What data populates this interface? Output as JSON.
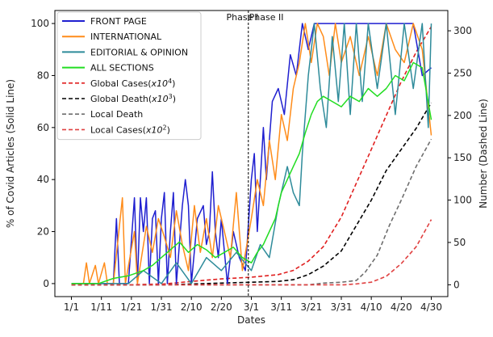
{
  "chart_data": {
    "type": "line",
    "xlabel": "Dates",
    "ylabel_left": "% of Covid Articles (Solid Line)",
    "ylabel_right": "Number (Dashed Line)",
    "x_ticks": [
      "1/1",
      "1/11",
      "1/21",
      "1/31",
      "2/10",
      "2/20",
      "3/1",
      "3/11",
      "3/21",
      "3/31",
      "4/10",
      "4/20",
      "4/30"
    ],
    "x_range": [
      "1/1",
      "4/30"
    ],
    "ylim_left": [
      0,
      100
    ],
    "ylim_right": [
      0,
      310
    ],
    "y_ticks_left": [
      0,
      20,
      40,
      60,
      80,
      100
    ],
    "y_ticks_right": [
      0,
      50,
      100,
      150,
      200,
      250,
      300
    ],
    "grid": false,
    "legend_position": "top-left",
    "annotations": [
      {
        "label": "Phase I",
        "x": "2/27"
      },
      {
        "label": "Phase II",
        "x": "3/6"
      }
    ],
    "phase_divider_x": "2/29",
    "solid_series": [
      {
        "name": "FRONT PAGE",
        "color": "#1f1fd0",
        "points": [
          [
            "1/1",
            0
          ],
          [
            "1/10",
            0
          ],
          [
            "1/15",
            0
          ],
          [
            "1/16",
            25
          ],
          [
            "1/17",
            0
          ],
          [
            "1/20",
            0
          ],
          [
            "1/22",
            33
          ],
          [
            "1/23",
            0
          ],
          [
            "1/24",
            33
          ],
          [
            "1/25",
            20
          ],
          [
            "1/26",
            33
          ],
          [
            "1/27",
            0
          ],
          [
            "1/28",
            25
          ],
          [
            "1/29",
            28
          ],
          [
            "1/30",
            0
          ],
          [
            "1/31",
            25
          ],
          [
            "2/1",
            35
          ],
          [
            "2/2",
            0
          ],
          [
            "2/3",
            20
          ],
          [
            "2/4",
            35
          ],
          [
            "2/5",
            0
          ],
          [
            "2/6",
            15
          ],
          [
            "2/7",
            30
          ],
          [
            "2/8",
            40
          ],
          [
            "2/9",
            30
          ],
          [
            "2/10",
            0
          ],
          [
            "2/12",
            25
          ],
          [
            "2/14",
            30
          ],
          [
            "2/15",
            15
          ],
          [
            "2/16",
            20
          ],
          [
            "2/17",
            43
          ],
          [
            "2/18",
            20
          ],
          [
            "2/19",
            10
          ],
          [
            "2/20",
            25
          ],
          [
            "2/22",
            0
          ],
          [
            "2/24",
            20
          ],
          [
            "2/26",
            10
          ],
          [
            "2/28",
            5
          ],
          [
            "3/1",
            40
          ],
          [
            "3/2",
            50
          ],
          [
            "3/3",
            20
          ],
          [
            "3/5",
            60
          ],
          [
            "3/6",
            40
          ],
          [
            "3/8",
            70
          ],
          [
            "3/10",
            75
          ],
          [
            "3/12",
            65
          ],
          [
            "3/14",
            88
          ],
          [
            "3/16",
            80
          ],
          [
            "3/18",
            100
          ],
          [
            "3/20",
            90
          ],
          [
            "3/22",
            100
          ],
          [
            "3/25",
            100
          ],
          [
            "3/28",
            100
          ],
          [
            "3/31",
            100
          ],
          [
            "4/3",
            100
          ],
          [
            "4/6",
            100
          ],
          [
            "4/9",
            100
          ],
          [
            "4/12",
            100
          ],
          [
            "4/15",
            100
          ],
          [
            "4/18",
            100
          ],
          [
            "4/21",
            100
          ],
          [
            "4/24",
            100
          ],
          [
            "4/27",
            80
          ],
          [
            "4/30",
            83
          ]
        ]
      },
      {
        "name": "INTERNATIONAL",
        "color": "#ff8c1a",
        "points": [
          [
            "1/1",
            0
          ],
          [
            "1/5",
            0
          ],
          [
            "1/6",
            8
          ],
          [
            "1/7",
            0
          ],
          [
            "1/9",
            7
          ],
          [
            "1/10",
            0
          ],
          [
            "1/12",
            8
          ],
          [
            "1/13",
            0
          ],
          [
            "1/15",
            0
          ],
          [
            "1/18",
            33
          ],
          [
            "1/19",
            0
          ],
          [
            "1/22",
            20
          ],
          [
            "1/23",
            0
          ],
          [
            "1/26",
            22
          ],
          [
            "1/28",
            12
          ],
          [
            "1/30",
            25
          ],
          [
            "2/1",
            18
          ],
          [
            "2/3",
            10
          ],
          [
            "2/5",
            28
          ],
          [
            "2/7",
            15
          ],
          [
            "2/9",
            5
          ],
          [
            "2/11",
            30
          ],
          [
            "2/13",
            12
          ],
          [
            "2/15",
            25
          ],
          [
            "2/17",
            10
          ],
          [
            "2/19",
            30
          ],
          [
            "2/21",
            20
          ],
          [
            "2/23",
            10
          ],
          [
            "2/25",
            35
          ],
          [
            "2/27",
            5
          ],
          [
            "3/1",
            25
          ],
          [
            "3/3",
            40
          ],
          [
            "3/5",
            30
          ],
          [
            "3/7",
            55
          ],
          [
            "3/9",
            40
          ],
          [
            "3/11",
            65
          ],
          [
            "3/13",
            55
          ],
          [
            "3/15",
            75
          ],
          [
            "3/17",
            85
          ],
          [
            "3/19",
            100
          ],
          [
            "3/21",
            85
          ],
          [
            "3/23",
            100
          ],
          [
            "3/25",
            95
          ],
          [
            "3/27",
            80
          ],
          [
            "3/29",
            100
          ],
          [
            "3/31",
            85
          ],
          [
            "4/3",
            95
          ],
          [
            "4/6",
            80
          ],
          [
            "4/9",
            95
          ],
          [
            "4/12",
            80
          ],
          [
            "4/15",
            100
          ],
          [
            "4/18",
            90
          ],
          [
            "4/21",
            85
          ],
          [
            "4/24",
            100
          ],
          [
            "4/27",
            90
          ],
          [
            "4/30",
            57
          ]
        ]
      },
      {
        "name": "EDITORIAL & OPINION",
        "color": "#2e8b9a",
        "points": [
          [
            "1/1",
            0
          ],
          [
            "1/15",
            0
          ],
          [
            "1/20",
            0
          ],
          [
            "1/25",
            5
          ],
          [
            "1/31",
            0
          ],
          [
            "2/5",
            8
          ],
          [
            "2/10",
            0
          ],
          [
            "2/15",
            10
          ],
          [
            "2/20",
            5
          ],
          [
            "2/25",
            12
          ],
          [
            "3/1",
            5
          ],
          [
            "3/4",
            15
          ],
          [
            "3/7",
            10
          ],
          [
            "3/10",
            30
          ],
          [
            "3/13",
            45
          ],
          [
            "3/15",
            35
          ],
          [
            "3/17",
            30
          ],
          [
            "3/18",
            50
          ],
          [
            "3/20",
            80
          ],
          [
            "3/22",
            100
          ],
          [
            "3/24",
            75
          ],
          [
            "3/26",
            60
          ],
          [
            "3/28",
            95
          ],
          [
            "3/30",
            70
          ],
          [
            "4/1",
            100
          ],
          [
            "4/3",
            65
          ],
          [
            "4/5",
            100
          ],
          [
            "4/7",
            70
          ],
          [
            "4/9",
            100
          ],
          [
            "4/12",
            75
          ],
          [
            "4/15",
            100
          ],
          [
            "4/18",
            65
          ],
          [
            "4/21",
            100
          ],
          [
            "4/24",
            75
          ],
          [
            "4/27",
            100
          ],
          [
            "4/29",
            60
          ],
          [
            "4/30",
            100
          ]
        ]
      },
      {
        "name": "ALL SECTIONS",
        "color": "#22dd22",
        "points": [
          [
            "1/1",
            0
          ],
          [
            "1/10",
            0
          ],
          [
            "1/15",
            2
          ],
          [
            "1/20",
            3
          ],
          [
            "1/25",
            5
          ],
          [
            "1/28",
            7
          ],
          [
            "1/31",
            10
          ],
          [
            "2/3",
            13
          ],
          [
            "2/6",
            16
          ],
          [
            "2/9",
            12
          ],
          [
            "2/12",
            15
          ],
          [
            "2/15",
            13
          ],
          [
            "2/18",
            10
          ],
          [
            "2/21",
            12
          ],
          [
            "2/24",
            14
          ],
          [
            "2/27",
            10
          ],
          [
            "3/1",
            8
          ],
          [
            "3/3",
            12
          ],
          [
            "3/5",
            15
          ],
          [
            "3/7",
            20
          ],
          [
            "3/9",
            25
          ],
          [
            "3/11",
            35
          ],
          [
            "3/13",
            40
          ],
          [
            "3/15",
            45
          ],
          [
            "3/17",
            50
          ],
          [
            "3/19",
            58
          ],
          [
            "3/21",
            65
          ],
          [
            "3/23",
            70
          ],
          [
            "3/25",
            72
          ],
          [
            "3/28",
            70
          ],
          [
            "3/31",
            68
          ],
          [
            "4/3",
            72
          ],
          [
            "4/6",
            70
          ],
          [
            "4/9",
            75
          ],
          [
            "4/12",
            72
          ],
          [
            "4/15",
            75
          ],
          [
            "4/18",
            80
          ],
          [
            "4/21",
            78
          ],
          [
            "4/24",
            85
          ],
          [
            "4/27",
            83
          ],
          [
            "4/30",
            63
          ]
        ]
      }
    ],
    "dashed_series": [
      {
        "name": "Global Cases",
        "unit": "x10",
        "exp": "4",
        "color": "#e02020",
        "points": [
          [
            "1/1",
            0
          ],
          [
            "1/20",
            0
          ],
          [
            "2/1",
            1
          ],
          [
            "2/10",
            4
          ],
          [
            "2/20",
            7
          ],
          [
            "3/1",
            9
          ],
          [
            "3/10",
            12
          ],
          [
            "3/15",
            17
          ],
          [
            "3/20",
            28
          ],
          [
            "3/25",
            45
          ],
          [
            "3/31",
            80
          ],
          [
            "4/5",
            120
          ],
          [
            "4/10",
            160
          ],
          [
            "4/15",
            200
          ],
          [
            "4/20",
            240
          ],
          [
            "4/25",
            275
          ],
          [
            "4/30",
            305
          ]
        ]
      },
      {
        "name": "Global Death",
        "unit": "x10",
        "exp": "3",
        "color": "#000000",
        "points": [
          [
            "1/1",
            0
          ],
          [
            "2/1",
            0
          ],
          [
            "2/20",
            2
          ],
          [
            "3/1",
            3
          ],
          [
            "3/10",
            4
          ],
          [
            "3/15",
            6
          ],
          [
            "3/20",
            12
          ],
          [
            "3/25",
            22
          ],
          [
            "3/31",
            40
          ],
          [
            "4/5",
            70
          ],
          [
            "4/10",
            100
          ],
          [
            "4/15",
            135
          ],
          [
            "4/20",
            160
          ],
          [
            "4/25",
            185
          ],
          [
            "4/30",
            215
          ]
        ]
      },
      {
        "name": "Local Death",
        "unit": "",
        "exp": "",
        "color": "#6e6e6e",
        "points": [
          [
            "1/1",
            0
          ],
          [
            "3/20",
            0
          ],
          [
            "3/25",
            2
          ],
          [
            "3/31",
            3
          ],
          [
            "4/5",
            5
          ],
          [
            "4/8",
            15
          ],
          [
            "4/12",
            35
          ],
          [
            "4/16",
            70
          ],
          [
            "4/20",
            100
          ],
          [
            "4/25",
            140
          ],
          [
            "4/30",
            172
          ]
        ]
      },
      {
        "name": "Local Cases",
        "unit": "x10",
        "exp": "2",
        "color": "#e04040",
        "points": [
          [
            "1/1",
            0
          ],
          [
            "4/1",
            0
          ],
          [
            "4/5",
            1
          ],
          [
            "4/10",
            3
          ],
          [
            "4/15",
            10
          ],
          [
            "4/20",
            25
          ],
          [
            "4/25",
            45
          ],
          [
            "4/30",
            77
          ]
        ]
      }
    ]
  }
}
